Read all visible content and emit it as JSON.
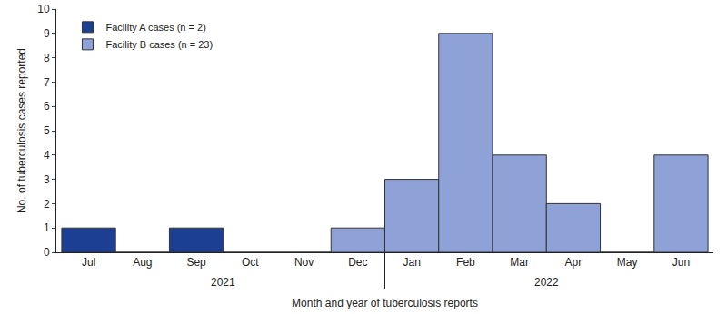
{
  "chart_data": {
    "type": "bar",
    "categories": [
      "Jul",
      "Aug",
      "Sep",
      "Oct",
      "Nov",
      "Dec",
      "Jan",
      "Feb",
      "Mar",
      "Apr",
      "May",
      "Jun"
    ],
    "series": [
      {
        "name": "Facility A cases (n = 2)",
        "color": "#1c3f94",
        "values": [
          1,
          0,
          1,
          0,
          0,
          null,
          null,
          null,
          null,
          null,
          null,
          null
        ]
      },
      {
        "name": "Facility B cases (n = 23)",
        "color": "#8ea2d8",
        "values": [
          null,
          null,
          null,
          null,
          null,
          1,
          3,
          9,
          4,
          2,
          0,
          4
        ]
      }
    ],
    "x_label": "Month and year of tuberculosis reports",
    "y_label": "No. of tuberculosis cases reported",
    "annotations": [
      {
        "text": "2021",
        "from": "Jul",
        "to": "Dec"
      },
      {
        "text": "2022",
        "from": "Jan",
        "to": "Jun"
      }
    ],
    "ylim": [
      0,
      10
    ],
    "yticks": [
      0,
      1,
      2,
      3,
      4,
      5,
      6,
      7,
      8,
      9,
      10
    ],
    "grid": false,
    "legend": "top left"
  }
}
